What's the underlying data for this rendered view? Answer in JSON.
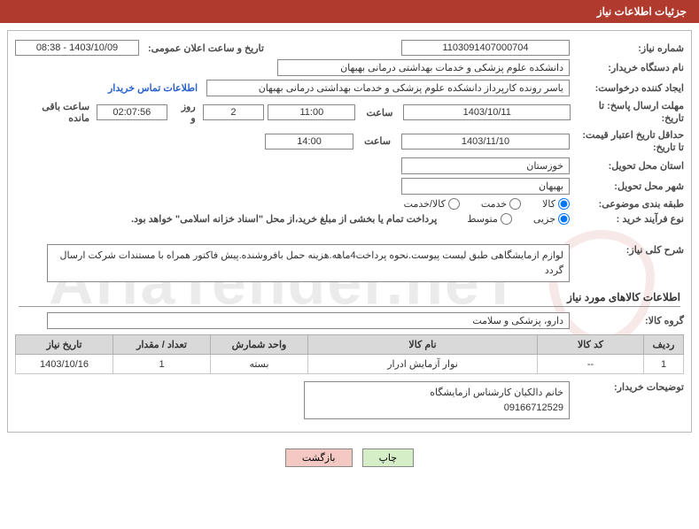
{
  "header": {
    "title": "جزئیات اطلاعات نیاز"
  },
  "fields": {
    "need_number_label": "شماره نیاز:",
    "need_number": "1103091407000704",
    "announce_label": "تاریخ و ساعت اعلان عمومی:",
    "announce_value": "1403/10/09 - 08:38",
    "buyer_org_label": "نام دستگاه خریدار:",
    "buyer_org": "دانشکده علوم پزشکی و خدمات بهداشتی  درمانی بهبهان",
    "requester_label": "ایجاد کننده درخواست:",
    "requester": "یاسر رونده کارپرداز دانشکده علوم پزشکی و خدمات بهداشتی  درمانی بهبهان",
    "contact_link": "اطلاعات تماس خریدار",
    "deadline_send_label": "مهلت ارسال پاسخ: تا تاریخ:",
    "deadline_send_date": "1403/10/11",
    "hour_word": "ساعت",
    "deadline_send_time": "11:00",
    "days_remaining": "2",
    "days_word": "روز و",
    "time_remaining": "02:07:56",
    "remaining_word": "ساعت باقی مانده",
    "validity_label": "حداقل تاریخ اعتبار قیمت: تا تاریخ:",
    "validity_date": "1403/11/10",
    "validity_time": "14:00",
    "province_label": "استان محل تحویل:",
    "province": "خوزستان",
    "city_label": "شهر محل تحویل:",
    "city": "بهبهان",
    "category_label": "طبقه بندی موضوعی:",
    "radio_goods": "کالا",
    "radio_service": "خدمت",
    "radio_both": "کالا/خدمت",
    "process_label": "نوع فرآیند خرید :",
    "radio_small": "جزیی",
    "radio_medium": "متوسط",
    "payment_note": "پرداخت تمام یا بخشی از مبلغ خرید،از محل \"اسناد خزانه اسلامی\" خواهد بود.",
    "overview_label": "شرح کلی نیاز:",
    "overview_text": "لوازم ازمایشگاهی طبق لیست پیوست.نحوه پرداخت4ماهه.هزینه حمل بافروشنده.پیش فاکتور همراه با مستندات شرکت ارسال گردد",
    "goods_section": "اطلاعات کالاهای مورد نیاز",
    "goods_group_label": "گروه کالا:",
    "goods_group": "دارو، پزشکی و سلامت",
    "buyer_notes_label": "توضیحات خریدار:",
    "buyer_notes": "خانم دالکیان کارشناس ازمایشگاه\n09166712529"
  },
  "table": {
    "headers": {
      "row": "ردیف",
      "code": "کد کالا",
      "name": "نام کالا",
      "unit": "واحد شمارش",
      "qty": "تعداد / مقدار",
      "date": "تاریخ نیاز"
    },
    "rows": [
      {
        "row": "1",
        "code": "--",
        "name": "نوار آزمایش ادرار",
        "unit": "بسته",
        "qty": "1",
        "date": "1403/10/16"
      }
    ]
  },
  "buttons": {
    "print": "چاپ",
    "back": "بازگشت"
  },
  "colors": {
    "header_bg": "#b13a2e",
    "border": "#b9b9b9",
    "link": "#2a5fce",
    "th_bg": "#d9d9d9",
    "btn_print": "#d6eec8",
    "btn_back": "#f4c9c3"
  }
}
